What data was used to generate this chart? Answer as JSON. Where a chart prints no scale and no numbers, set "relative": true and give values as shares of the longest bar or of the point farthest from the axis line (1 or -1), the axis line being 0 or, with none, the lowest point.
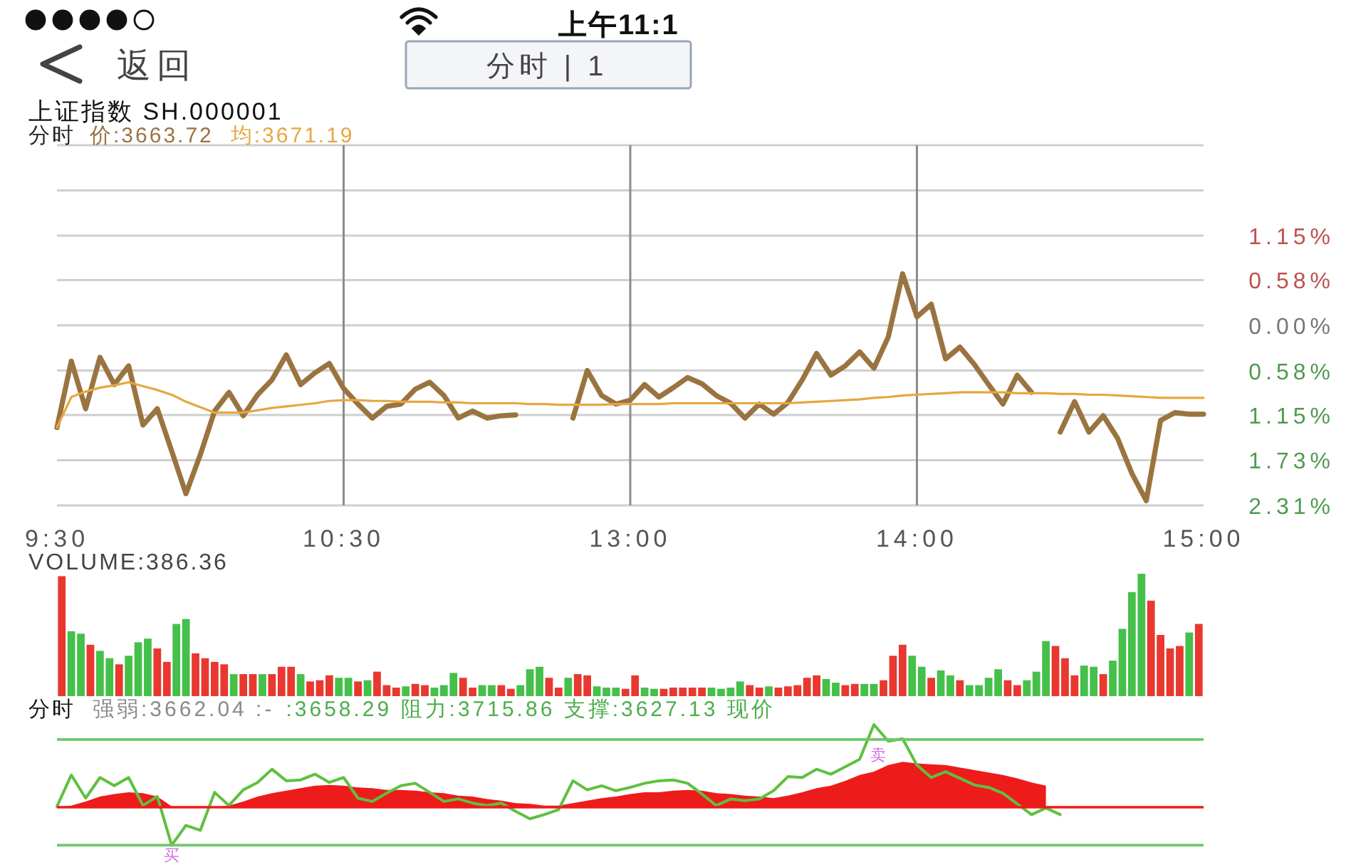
{
  "chart_data": [
    {
      "type": "line",
      "title": "上证指数 SH.000001",
      "subtitle": "分时",
      "categories": [
        "9:30",
        null,
        null,
        null,
        null,
        null,
        null,
        null,
        null,
        null,
        null,
        null,
        null,
        null,
        null,
        null,
        null,
        null,
        null,
        null,
        "10:30",
        null,
        null,
        null,
        null,
        null,
        null,
        null,
        null,
        null,
        null,
        null,
        null,
        null,
        null,
        null,
        null,
        null,
        null,
        null,
        "13:00",
        null,
        null,
        null,
        null,
        null,
        null,
        null,
        null,
        null,
        null,
        null,
        null,
        null,
        null,
        null,
        null,
        null,
        null,
        null,
        "14:00",
        null,
        null,
        null,
        null,
        null,
        null,
        null,
        null,
        null,
        null,
        null,
        null,
        null,
        null,
        null,
        null,
        null,
        null,
        null,
        "15:00"
      ],
      "series": [
        {
          "name": "价:3663.72",
          "color": "#9a7440",
          "values": [
            -1.31,
            -0.46,
            -1.07,
            -0.41,
            -0.76,
            -0.52,
            -1.28,
            -1.07,
            -1.61,
            -2.16,
            -1.66,
            -1.1,
            -0.86,
            -1.16,
            -0.89,
            -0.7,
            -0.38,
            -0.76,
            -0.61,
            -0.49,
            -0.81,
            -1.01,
            -1.19,
            -1.04,
            -1.01,
            -0.82,
            -0.73,
            -0.9,
            -1.19,
            -1.1,
            -1.19,
            -1.16,
            -1.15,
            null,
            null,
            null,
            -1.19,
            -0.58,
            -0.9,
            -1.01,
            -0.96,
            -0.76,
            -0.92,
            -0.8,
            -0.67,
            -0.75,
            -0.9,
            -1.0,
            -1.19,
            -1.01,
            -1.14,
            -0.99,
            -0.7,
            -0.36,
            -0.64,
            -0.52,
            -0.34,
            -0.55,
            -0.15,
            0.66,
            0.11,
            0.27,
            -0.43,
            -0.28,
            -0.5,
            -0.76,
            -1.01,
            -0.64,
            -0.86,
            null,
            -1.37,
            -0.98,
            -1.37,
            -1.16,
            -1.45,
            -1.9,
            -2.25,
            -1.22,
            -1.12,
            -1.14,
            -1.14
          ]
        },
        {
          "name": "均:3671.19",
          "color": "#e8a640",
          "values": [
            -1.31,
            -0.92,
            -0.85,
            -0.8,
            -0.77,
            -0.73,
            -0.78,
            -0.83,
            -0.89,
            -0.98,
            -1.05,
            -1.12,
            -1.12,
            -1.12,
            -1.09,
            -1.06,
            -1.04,
            -1.02,
            -1.0,
            -0.97,
            -0.96,
            -0.96,
            -0.97,
            -0.97,
            -0.98,
            -0.98,
            -0.98,
            -0.99,
            -0.99,
            -1.0,
            -1.0,
            -1.0,
            -1.0,
            -1.01,
            -1.01,
            -1.02,
            -1.02,
            -1.02,
            -1.02,
            -1.01,
            -1.01,
            -1.01,
            -1.01,
            -1.0,
            -1.0,
            -1.0,
            -1.0,
            -1.0,
            -1.0,
            -1.0,
            -1.0,
            -1.0,
            -0.99,
            -0.98,
            -0.97,
            -0.96,
            -0.95,
            -0.93,
            -0.92,
            -0.9,
            -0.89,
            -0.88,
            -0.87,
            -0.86,
            -0.86,
            -0.86,
            -0.86,
            -0.87,
            -0.87,
            -0.87,
            -0.88,
            -0.88,
            -0.89,
            -0.89,
            -0.9,
            -0.91,
            -0.92,
            -0.93,
            -0.93,
            -0.93,
            -0.93
          ]
        }
      ],
      "ylim": [
        -2.31,
        2.31
      ],
      "yticks": [
        {
          "value": 2.31,
          "label": null
        },
        {
          "value": 1.73,
          "label": null
        },
        {
          "value": 1.15,
          "label": "1.15%"
        },
        {
          "value": 0.58,
          "label": "0.58%"
        },
        {
          "value": 0,
          "label": "0.00%"
        },
        {
          "value": -0.58,
          "label": "0.58%"
        },
        {
          "value": -1.15,
          "label": "1.15%"
        },
        {
          "value": -1.73,
          "label": "1.73%"
        },
        {
          "value": -2.31,
          "label": "2.31%"
        }
      ],
      "grid": true,
      "legend": "top left",
      "annotations": [
        "上午11:1",
        "返回",
        "分时 | 1"
      ]
    },
    {
      "type": "bar",
      "title": "VOLUME:386.36",
      "relative": true,
      "categories": [
        null,
        null,
        null,
        null,
        null,
        null,
        null,
        null,
        null,
        null,
        null,
        null,
        null,
        null,
        null,
        null,
        null,
        null,
        null,
        null,
        null,
        null,
        null,
        null,
        null,
        null,
        null,
        null,
        null,
        null,
        null,
        null,
        null,
        null,
        null,
        null,
        null,
        null,
        null,
        null,
        null,
        null,
        null,
        null,
        null,
        null,
        null,
        null,
        null,
        null,
        null,
        null,
        null,
        null,
        null,
        null,
        null,
        null,
        null,
        null,
        null,
        null,
        null,
        null,
        null,
        null,
        null,
        null,
        null,
        null,
        null,
        null,
        null,
        null,
        null,
        null,
        null,
        null,
        null,
        null,
        null,
        null,
        null,
        null,
        null,
        null,
        null,
        null,
        null,
        null,
        null,
        null,
        null,
        null,
        null,
        null,
        null,
        null,
        null,
        null,
        null,
        null,
        null,
        null,
        null,
        null,
        null,
        null,
        null,
        null,
        null,
        null,
        null,
        null,
        null,
        null,
        null,
        null,
        null,
        null
      ],
      "values": [
        0.98,
        0.53,
        0.51,
        0.42,
        0.37,
        0.31,
        0.26,
        0.33,
        0.44,
        0.47,
        0.39,
        0.28,
        0.59,
        0.63,
        0.35,
        0.31,
        0.28,
        0.26,
        0.18,
        0.18,
        0.18,
        0.18,
        0.18,
        0.24,
        0.24,
        0.18,
        0.12,
        0.13,
        0.17,
        0.15,
        0.15,
        0.12,
        0.13,
        0.2,
        0.09,
        0.07,
        0.08,
        0.1,
        0.09,
        0.07,
        0.09,
        0.19,
        0.15,
        0.07,
        0.09,
        0.09,
        0.09,
        0.06,
        0.09,
        0.22,
        0.24,
        0.15,
        0.07,
        0.15,
        0.18,
        0.17,
        0.08,
        0.07,
        0.07,
        0.06,
        0.17,
        0.07,
        0.06,
        0.06,
        0.07,
        0.07,
        0.07,
        0.07,
        0.07,
        0.06,
        0.07,
        0.12,
        0.09,
        0.07,
        0.08,
        0.07,
        0.08,
        0.09,
        0.15,
        0.17,
        0.14,
        0.11,
        0.09,
        0.1,
        0.1,
        0.1,
        0.13,
        0.33,
        0.42,
        0.33,
        0.24,
        0.15,
        0.21,
        0.17,
        0.13,
        0.09,
        0.09,
        0.15,
        0.22,
        0.13,
        0.09,
        0.13,
        0.2,
        0.45,
        0.41,
        0.31,
        0.17,
        0.25,
        0.24,
        0.18,
        0.29,
        0.55,
        0.85,
        1.0,
        0.78,
        0.5,
        0.39,
        0.41,
        0.52,
        0.59
      ],
      "colors": [
        "#e8382f",
        "#45c04a",
        "#45c04a",
        "#e8382f",
        "#45c04a",
        "#45c04a",
        "#e8382f",
        "#45c04a",
        "#45c04a",
        "#45c04a",
        "#e8382f",
        "#e8382f",
        "#45c04a",
        "#45c04a",
        "#e8382f",
        "#e8382f",
        "#e8382f",
        "#e8382f",
        "#45c04a",
        "#e8382f",
        "#e8382f",
        "#45c04a",
        "#e8382f",
        "#e8382f",
        "#e8382f",
        "#45c04a",
        "#e8382f",
        "#e8382f",
        "#e8382f",
        "#45c04a",
        "#45c04a",
        "#e8382f",
        "#45c04a",
        "#e8382f",
        "#e8382f",
        "#e8382f",
        "#45c04a",
        "#e8382f",
        "#e8382f",
        "#45c04a",
        "#45c04a",
        "#45c04a",
        "#e8382f",
        "#e8382f",
        "#45c04a",
        "#45c04a",
        "#e8382f",
        "#e8382f",
        "#45c04a",
        "#45c04a",
        "#45c04a",
        "#e8382f",
        "#e8382f",
        "#45c04a",
        "#e8382f",
        "#e8382f",
        "#45c04a",
        "#45c04a",
        "#45c04a",
        "#e8382f",
        "#e8382f",
        "#45c04a",
        "#45c04a",
        "#e8382f",
        "#e8382f",
        "#e8382f",
        "#e8382f",
        "#e8382f",
        "#45c04a",
        "#45c04a",
        "#45c04a",
        "#45c04a",
        "#e8382f",
        "#e8382f",
        "#45c04a",
        "#e8382f",
        "#e8382f",
        "#e8382f",
        "#e8382f",
        "#e8382f",
        "#45c04a",
        "#45c04a",
        "#e8382f",
        "#e8382f",
        "#45c04a",
        "#45c04a",
        "#e8382f",
        "#e8382f",
        "#e8382f",
        "#45c04a",
        "#45c04a",
        "#e8382f",
        "#45c04a",
        "#45c04a",
        "#e8382f",
        "#45c04a",
        "#45c04a",
        "#45c04a",
        "#45c04a",
        "#e8382f",
        "#e8382f",
        "#45c04a",
        "#45c04a",
        "#45c04a",
        "#e8382f",
        "#e8382f",
        "#e8382f",
        "#45c04a",
        "#45c04a",
        "#e8382f",
        "#45c04a",
        "#45c04a",
        "#45c04a",
        "#45c04a",
        "#e8382f",
        "#e8382f",
        "#e8382f",
        "#e8382f",
        "#45c04a",
        "#e8382f"
      ]
    },
    {
      "type": "line",
      "title": "分时",
      "relative": true,
      "categories": [
        null,
        null,
        null,
        null,
        null,
        null,
        null,
        null,
        null,
        null,
        null,
        null,
        null,
        null,
        null,
        null,
        null,
        null,
        null,
        null,
        null,
        null,
        null,
        null,
        null,
        null,
        null,
        null,
        null,
        null,
        null,
        null,
        null,
        null,
        null,
        null,
        null,
        null,
        null,
        null,
        null,
        null,
        null,
        null,
        null,
        null,
        null,
        null,
        null,
        null,
        null,
        null,
        null,
        null,
        null,
        null,
        null,
        null,
        null,
        null,
        null,
        null,
        null,
        null,
        null,
        null,
        null,
        null,
        null,
        null,
        null,
        null,
        null,
        null,
        null,
        null,
        null,
        null,
        null,
        null,
        null
      ],
      "series": [
        {
          "type": "area",
          "color": "#ee1b1b",
          "values": [
            0.0,
            0.02,
            0.07,
            0.13,
            0.16,
            0.18,
            0.17,
            0.13,
            0.01,
            0.0,
            0.0,
            0.0,
            0.02,
            0.07,
            0.13,
            0.17,
            0.2,
            0.23,
            0.26,
            0.27,
            0.26,
            0.24,
            0.23,
            0.21,
            0.21,
            0.2,
            0.18,
            0.17,
            0.14,
            0.13,
            0.1,
            0.08,
            0.05,
            0.04,
            0.02,
            0.02,
            0.05,
            0.08,
            0.11,
            0.13,
            0.16,
            0.18,
            0.18,
            0.2,
            0.21,
            0.2,
            0.17,
            0.16,
            0.14,
            0.13,
            0.11,
            0.14,
            0.18,
            0.23,
            0.26,
            0.32,
            0.39,
            0.43,
            0.51,
            0.55,
            0.53,
            0.52,
            0.51,
            0.48,
            0.45,
            0.42,
            0.39,
            0.35,
            0.3,
            0.26,
            null,
            null,
            null,
            null,
            null,
            null,
            null,
            null,
            null,
            null,
            null
          ]
        },
        {
          "type": "line",
          "color": "#5fc03f",
          "values": [
            0.01,
            0.39,
            0.11,
            0.36,
            0.26,
            0.36,
            0.02,
            0.13,
            -0.46,
            -0.22,
            -0.28,
            0.18,
            0.02,
            0.21,
            0.3,
            0.46,
            0.32,
            0.33,
            0.4,
            0.3,
            0.36,
            0.11,
            0.07,
            0.17,
            0.26,
            0.29,
            0.18,
            0.07,
            0.1,
            0.05,
            0.02,
            0.05,
            -0.05,
            -0.14,
            -0.09,
            -0.03,
            0.32,
            0.21,
            0.26,
            0.2,
            0.24,
            0.29,
            0.32,
            0.33,
            0.29,
            0.16,
            0.02,
            0.1,
            0.08,
            0.1,
            0.2,
            0.37,
            0.36,
            0.46,
            0.4,
            0.49,
            0.58,
            1.0,
            0.8,
            0.83,
            0.51,
            0.36,
            0.43,
            0.35,
            0.27,
            0.24,
            0.17,
            0.04,
            -0.09,
            -0.01,
            -0.09,
            null,
            null,
            null,
            null,
            null,
            null,
            null,
            null,
            null,
            null
          ]
        }
      ],
      "ref_lines": [
        {
          "axis": "y",
          "value": 0.82,
          "color": "#6cc86a"
        },
        {
          "axis": "y",
          "value": 0,
          "color": "#ee1b1b"
        },
        {
          "axis": "y",
          "value": -0.46,
          "color": "#6cc86a"
        }
      ],
      "annotations": [
        "强弱:3662.04 :-",
        ":3658.29 阻力:3715.86 支撑:3627.13 现价",
        {
          "text": "买",
          "y": -0.46
        },
        {
          "text": "卖",
          "y": 1
        }
      ]
    }
  ]
}
